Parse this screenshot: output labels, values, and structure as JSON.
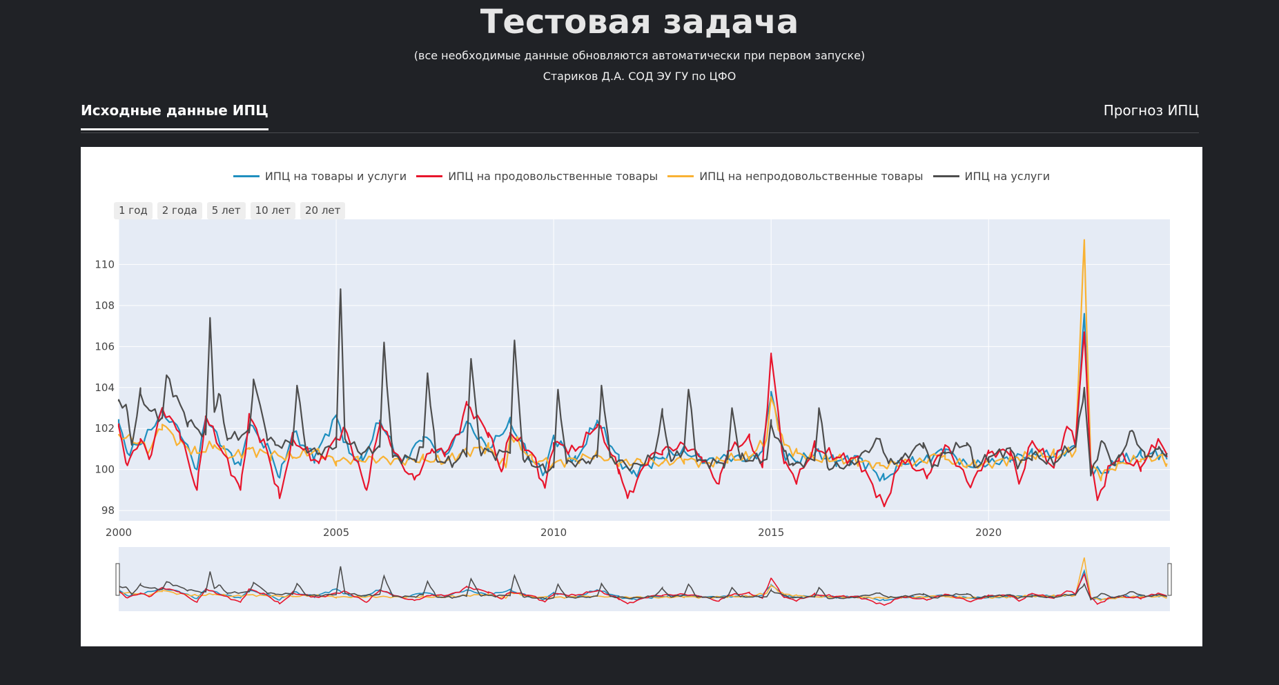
{
  "header": {
    "title": "Тестовая задача",
    "subtitle": "(все необходимые данные обновляются автоматически при первом запуске)",
    "author": "Стариков Д.А. СОД ЭУ ГУ по ЦФО"
  },
  "tabs": [
    {
      "label": "Исходные данные ИПЦ",
      "active": true
    },
    {
      "label": "Прогноз ИПЦ",
      "active": false
    }
  ],
  "range_buttons": [
    "1 год",
    "2 года",
    "5 лет",
    "10 лет",
    "20 лет"
  ],
  "colors": {
    "total": "#1f8fbf",
    "food": "#e8152c",
    "nonfood": "#f9b233",
    "services": "#4d4d4d",
    "plot_bg": "#e5ebf5",
    "panel": "#ffffff",
    "page": "#202226"
  },
  "chart_data": {
    "type": "line",
    "x_range": [
      "2000-01",
      "2024-02"
    ],
    "ylim": [
      97.5,
      112.2
    ],
    "y_ticks": [
      98,
      100,
      102,
      104,
      106,
      108,
      110
    ],
    "x_ticks": [
      2000,
      2005,
      2010,
      2015,
      2020
    ],
    "grid": true,
    "legend_placement": "top-center",
    "range_slider": true,
    "series": [
      {
        "name": "ИПЦ на товары и услуги",
        "color": "#1f8fbf",
        "key": "total",
        "anchors": [
          [
            2000.0,
            102.3
          ],
          [
            2000.2,
            100.8
          ],
          [
            2000.6,
            101.5
          ],
          [
            2001.0,
            102.8
          ],
          [
            2001.4,
            101.9
          ],
          [
            2001.8,
            100.0
          ],
          [
            2002.0,
            102.6
          ],
          [
            2002.4,
            101.1
          ],
          [
            2002.8,
            100.2
          ],
          [
            2003.0,
            102.2
          ],
          [
            2003.5,
            100.8
          ],
          [
            2003.7,
            99.6
          ],
          [
            2004.0,
            101.8
          ],
          [
            2004.5,
            100.6
          ],
          [
            2005.0,
            102.6
          ],
          [
            2005.3,
            100.8
          ],
          [
            2005.6,
            100.4
          ],
          [
            2006.0,
            102.4
          ],
          [
            2006.5,
            100.3
          ],
          [
            2007.0,
            101.6
          ],
          [
            2007.5,
            100.7
          ],
          [
            2008.0,
            102.3
          ],
          [
            2008.5,
            101.0
          ],
          [
            2009.0,
            102.3
          ],
          [
            2009.5,
            100.4
          ],
          [
            2009.8,
            99.9
          ],
          [
            2010.0,
            101.6
          ],
          [
            2010.5,
            100.4
          ],
          [
            2011.0,
            102.4
          ],
          [
            2011.5,
            100.5
          ],
          [
            2011.8,
            99.8
          ],
          [
            2012.5,
            100.6
          ],
          [
            2013.0,
            100.9
          ],
          [
            2013.5,
            100.4
          ],
          [
            2014.0,
            100.6
          ],
          [
            2014.5,
            100.5
          ],
          [
            2014.8,
            100.9
          ],
          [
            2015.0,
            103.8
          ],
          [
            2015.3,
            100.7
          ],
          [
            2015.6,
            100.4
          ],
          [
            2016.0,
            100.8
          ],
          [
            2016.5,
            100.4
          ],
          [
            2017.0,
            100.6
          ],
          [
            2017.6,
            99.5
          ],
          [
            2018.0,
            100.3
          ],
          [
            2018.5,
            100.4
          ],
          [
            2019.0,
            101.0
          ],
          [
            2019.5,
            100.2
          ],
          [
            2020.0,
            100.3
          ],
          [
            2020.5,
            100.5
          ],
          [
            2021.0,
            100.8
          ],
          [
            2021.5,
            100.7
          ],
          [
            2022.0,
            101.1
          ],
          [
            2022.2,
            107.6
          ],
          [
            2022.35,
            100.1
          ],
          [
            2022.6,
            99.8
          ],
          [
            2023.0,
            100.4
          ],
          [
            2023.5,
            100.7
          ],
          [
            2024.0,
            100.8
          ],
          [
            2024.1,
            100.5
          ]
        ]
      },
      {
        "name": "ИПЦ на продовольственные товары",
        "color": "#e8152c",
        "key": "food",
        "anchors": [
          [
            2000.0,
            102.1
          ],
          [
            2000.2,
            100.2
          ],
          [
            2000.5,
            101.5
          ],
          [
            2000.7,
            100.5
          ],
          [
            2001.0,
            103.0
          ],
          [
            2001.4,
            101.8
          ],
          [
            2001.8,
            99.0
          ],
          [
            2002.0,
            102.6
          ],
          [
            2002.4,
            100.8
          ],
          [
            2002.8,
            99.0
          ],
          [
            2003.0,
            102.6
          ],
          [
            2003.4,
            101.0
          ],
          [
            2003.7,
            98.6
          ],
          [
            2004.0,
            101.5
          ],
          [
            2004.6,
            100.3
          ],
          [
            2005.0,
            101.5
          ],
          [
            2005.2,
            102.0
          ],
          [
            2005.7,
            99.0
          ],
          [
            2006.0,
            102.3
          ],
          [
            2006.5,
            100.3
          ],
          [
            2006.8,
            99.5
          ],
          [
            2007.2,
            101.0
          ],
          [
            2007.5,
            100.8
          ],
          [
            2007.8,
            101.7
          ],
          [
            2008.0,
            103.2
          ],
          [
            2008.5,
            101.8
          ],
          [
            2008.8,
            99.9
          ],
          [
            2009.0,
            101.8
          ],
          [
            2009.5,
            100.8
          ],
          [
            2009.8,
            99.1
          ],
          [
            2010.0,
            101.3
          ],
          [
            2010.5,
            100.9
          ],
          [
            2011.0,
            102.2
          ],
          [
            2011.5,
            100.0
          ],
          [
            2011.7,
            98.6
          ],
          [
            2012.2,
            100.6
          ],
          [
            2012.5,
            100.9
          ],
          [
            2013.0,
            101.2
          ],
          [
            2013.4,
            100.6
          ],
          [
            2013.8,
            99.3
          ],
          [
            2014.0,
            100.9
          ],
          [
            2014.5,
            101.5
          ],
          [
            2014.8,
            100.1
          ],
          [
            2015.0,
            105.6
          ],
          [
            2015.3,
            100.3
          ],
          [
            2015.6,
            99.5
          ],
          [
            2016.0,
            101.1
          ],
          [
            2016.5,
            100.6
          ],
          [
            2017.0,
            100.5
          ],
          [
            2017.6,
            98.2
          ],
          [
            2018.0,
            100.5
          ],
          [
            2018.6,
            99.7
          ],
          [
            2019.0,
            101.2
          ],
          [
            2019.6,
            99.2
          ],
          [
            2020.0,
            100.8
          ],
          [
            2020.5,
            100.9
          ],
          [
            2020.7,
            99.3
          ],
          [
            2021.0,
            101.4
          ],
          [
            2021.5,
            100.1
          ],
          [
            2021.8,
            102.1
          ],
          [
            2022.0,
            101.4
          ],
          [
            2022.2,
            106.7
          ],
          [
            2022.35,
            100.3
          ],
          [
            2022.5,
            98.5
          ],
          [
            2022.8,
            100.2
          ],
          [
            2023.0,
            100.6
          ],
          [
            2023.5,
            100.1
          ],
          [
            2023.9,
            101.5
          ],
          [
            2024.1,
            100.6
          ]
        ]
      },
      {
        "name": "ИПЦ на непродовольственные товары",
        "color": "#f9b233",
        "key": "nonfood",
        "anchors": [
          [
            2000.0,
            101.7
          ],
          [
            2000.5,
            101.3
          ],
          [
            2000.7,
            100.9
          ],
          [
            2001.0,
            102.2
          ],
          [
            2001.4,
            101.3
          ],
          [
            2001.8,
            100.8
          ],
          [
            2002.2,
            101.2
          ],
          [
            2002.6,
            100.6
          ],
          [
            2003.0,
            101.0
          ],
          [
            2003.5,
            100.7
          ],
          [
            2004.0,
            100.6
          ],
          [
            2004.5,
            100.9
          ],
          [
            2005.0,
            100.4
          ],
          [
            2005.5,
            100.5
          ],
          [
            2006.0,
            100.5
          ],
          [
            2006.5,
            100.4
          ],
          [
            2007.0,
            100.5
          ],
          [
            2007.5,
            100.4
          ],
          [
            2008.0,
            100.9
          ],
          [
            2008.5,
            101.1
          ],
          [
            2008.9,
            100.1
          ],
          [
            2009.0,
            101.7
          ],
          [
            2009.5,
            100.5
          ],
          [
            2010.0,
            100.3
          ],
          [
            2010.5,
            100.5
          ],
          [
            2011.0,
            100.7
          ],
          [
            2011.5,
            100.3
          ],
          [
            2012.0,
            100.4
          ],
          [
            2012.5,
            100.3
          ],
          [
            2013.0,
            100.5
          ],
          [
            2013.5,
            100.3
          ],
          [
            2014.0,
            100.5
          ],
          [
            2014.5,
            100.6
          ],
          [
            2014.9,
            101.5
          ],
          [
            2015.0,
            103.5
          ],
          [
            2015.3,
            101.2
          ],
          [
            2015.6,
            100.8
          ],
          [
            2016.0,
            100.5
          ],
          [
            2016.5,
            100.5
          ],
          [
            2017.0,
            100.4
          ],
          [
            2017.5,
            100.2
          ],
          [
            2018.0,
            100.3
          ],
          [
            2018.5,
            100.4
          ],
          [
            2018.9,
            100.8
          ],
          [
            2019.0,
            100.5
          ],
          [
            2019.5,
            100.2
          ],
          [
            2020.0,
            100.3
          ],
          [
            2020.5,
            100.5
          ],
          [
            2021.0,
            100.7
          ],
          [
            2021.5,
            100.7
          ],
          [
            2022.0,
            100.9
          ],
          [
            2022.2,
            111.2
          ],
          [
            2022.35,
            100.2
          ],
          [
            2022.6,
            99.7
          ],
          [
            2023.0,
            100.3
          ],
          [
            2023.5,
            100.5
          ],
          [
            2024.0,
            100.6
          ],
          [
            2024.1,
            100.3
          ]
        ]
      },
      {
        "name": "ИПЦ на услуги",
        "color": "#4d4d4d",
        "key": "services",
        "anchors": [
          [
            2000.0,
            103.4
          ],
          [
            2000.2,
            102.8
          ],
          [
            2000.3,
            101.2
          ],
          [
            2000.5,
            103.7
          ],
          [
            2000.7,
            102.9
          ],
          [
            2001.0,
            102.5
          ],
          [
            2001.1,
            104.6
          ],
          [
            2001.3,
            103.6
          ],
          [
            2001.6,
            102.3
          ],
          [
            2002.0,
            101.7
          ],
          [
            2002.1,
            107.4
          ],
          [
            2002.2,
            102.8
          ],
          [
            2002.3,
            103.7
          ],
          [
            2002.5,
            101.5
          ],
          [
            2003.0,
            101.8
          ],
          [
            2003.1,
            104.4
          ],
          [
            2003.4,
            101.7
          ],
          [
            2003.6,
            101.2
          ],
          [
            2004.0,
            101.3
          ],
          [
            2004.1,
            104.1
          ],
          [
            2004.3,
            101.0
          ],
          [
            2004.6,
            100.8
          ],
          [
            2005.0,
            101.2
          ],
          [
            2005.1,
            108.8
          ],
          [
            2005.2,
            101.5
          ],
          [
            2005.6,
            100.8
          ],
          [
            2006.0,
            101.1
          ],
          [
            2006.1,
            106.2
          ],
          [
            2006.3,
            100.6
          ],
          [
            2006.8,
            100.5
          ],
          [
            2007.0,
            101.1
          ],
          [
            2007.1,
            104.7
          ],
          [
            2007.3,
            100.5
          ],
          [
            2007.7,
            100.3
          ],
          [
            2008.0,
            100.9
          ],
          [
            2008.1,
            105.4
          ],
          [
            2008.3,
            101.0
          ],
          [
            2008.7,
            100.7
          ],
          [
            2009.0,
            101.0
          ],
          [
            2009.1,
            106.3
          ],
          [
            2009.3,
            100.5
          ],
          [
            2009.8,
            100.0
          ],
          [
            2010.0,
            100.1
          ],
          [
            2010.1,
            103.9
          ],
          [
            2010.3,
            100.3
          ],
          [
            2010.8,
            100.4
          ],
          [
            2011.0,
            100.6
          ],
          [
            2011.1,
            104.1
          ],
          [
            2011.3,
            100.6
          ],
          [
            2011.8,
            100.1
          ],
          [
            2012.3,
            100.6
          ],
          [
            2012.5,
            102.7
          ],
          [
            2012.7,
            100.4
          ],
          [
            2013.0,
            101.0
          ],
          [
            2013.1,
            103.9
          ],
          [
            2013.3,
            100.4
          ],
          [
            2013.9,
            100.3
          ],
          [
            2014.0,
            100.5
          ],
          [
            2014.1,
            103.0
          ],
          [
            2014.3,
            100.5
          ],
          [
            2014.9,
            100.5
          ],
          [
            2015.0,
            102.2
          ],
          [
            2015.3,
            100.9
          ],
          [
            2015.5,
            100.2
          ],
          [
            2016.0,
            100.5
          ],
          [
            2016.1,
            103.0
          ],
          [
            2016.3,
            100.1
          ],
          [
            2016.8,
            100.2
          ],
          [
            2017.0,
            100.5
          ],
          [
            2017.5,
            101.5
          ],
          [
            2017.7,
            100.3
          ],
          [
            2018.0,
            100.5
          ],
          [
            2018.5,
            101.3
          ],
          [
            2018.7,
            100.1
          ],
          [
            2019.0,
            100.8
          ],
          [
            2019.5,
            101.3
          ],
          [
            2019.7,
            100.1
          ],
          [
            2020.0,
            100.6
          ],
          [
            2020.5,
            101.0
          ],
          [
            2020.7,
            100.2
          ],
          [
            2021.0,
            100.7
          ],
          [
            2021.5,
            100.3
          ],
          [
            2021.8,
            101.0
          ],
          [
            2022.0,
            101.1
          ],
          [
            2022.2,
            104.0
          ],
          [
            2022.35,
            99.7
          ],
          [
            2022.6,
            101.4
          ],
          [
            2022.9,
            100.2
          ],
          [
            2023.0,
            100.6
          ],
          [
            2023.3,
            101.9
          ],
          [
            2023.6,
            100.6
          ],
          [
            2023.9,
            101.0
          ],
          [
            2024.1,
            100.8
          ]
        ]
      }
    ]
  }
}
